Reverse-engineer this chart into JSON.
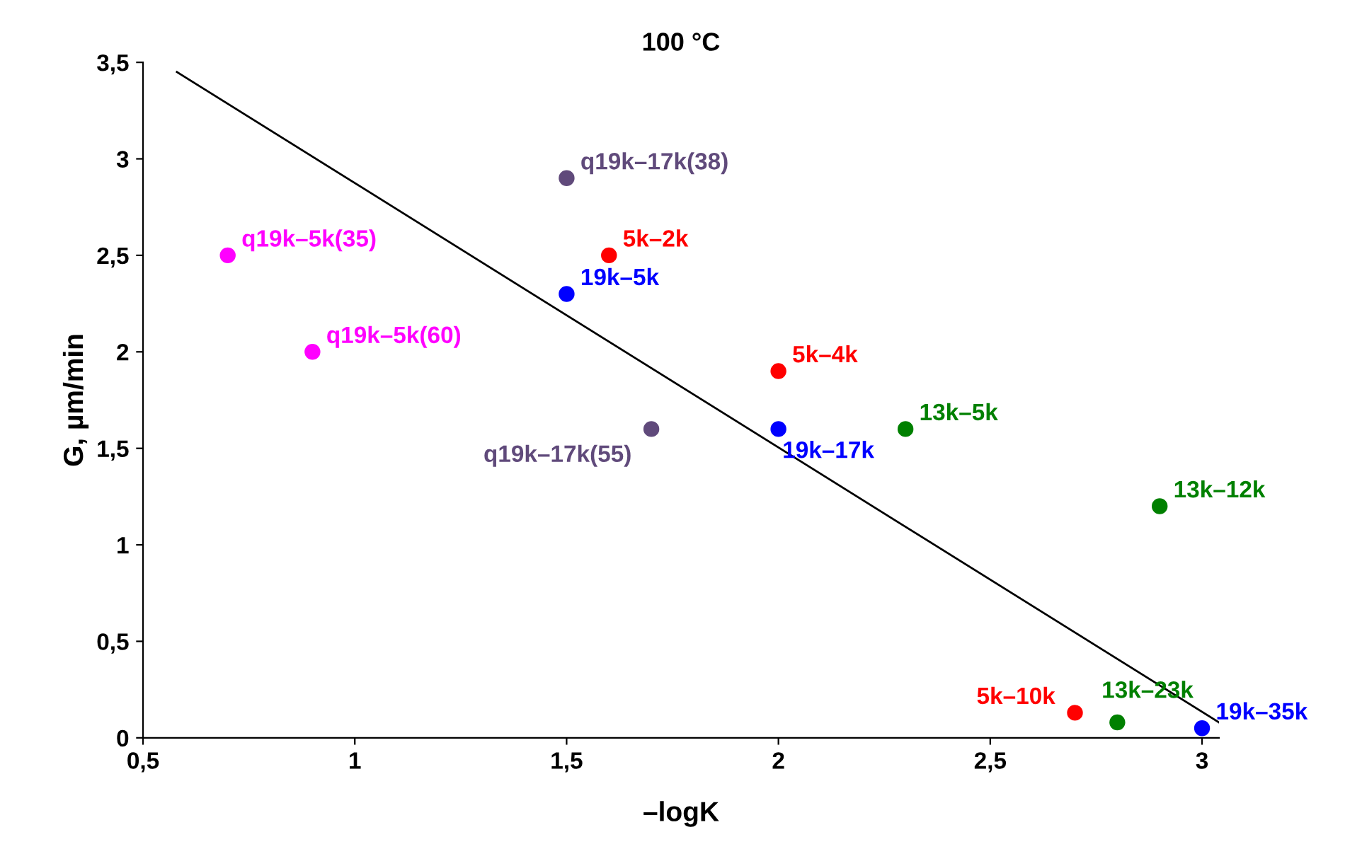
{
  "chart_data": {
    "type": "scatter",
    "title": "100 °C",
    "xlabel": "–logK",
    "ylabel": "G, µm/min",
    "xlim": [
      0.5,
      3.04
    ],
    "ylim": [
      0,
      3.5
    ],
    "xticks": [
      {
        "value": 0.5,
        "label": "0,5"
      },
      1,
      {
        "value": 1.5,
        "label": "1,5"
      },
      2,
      {
        "value": 2.5,
        "label": "2,5"
      },
      3
    ],
    "yticks": [
      0,
      {
        "value": 0.5,
        "label": "0,5"
      },
      1,
      {
        "value": 1.5,
        "label": "1,5"
      },
      2,
      {
        "value": 2.5,
        "label": "2,5"
      },
      3,
      {
        "value": 3.5,
        "label": "3,5"
      }
    ],
    "grid": false,
    "legend": false,
    "series": [
      {
        "name": "q19k–5k(35)",
        "color": "#ff00ff",
        "x": [
          0.7
        ],
        "values": [
          2.5
        ]
      },
      {
        "name": "q19k–5k(60)",
        "color": "#ff00ff",
        "x": [
          0.9
        ],
        "values": [
          2.0
        ]
      },
      {
        "name": "q19k–17k(38)",
        "color": "#604a7b",
        "x": [
          1.5
        ],
        "values": [
          2.9
        ]
      },
      {
        "name": "q19k–17k(55)",
        "color": "#604a7b",
        "x": [
          1.7
        ],
        "values": [
          1.6
        ]
      },
      {
        "name": "5k–2k",
        "color": "#ff0000",
        "x": [
          1.6
        ],
        "values": [
          2.5
        ]
      },
      {
        "name": "19k–5k",
        "color": "#0000ff",
        "x": [
          1.5
        ],
        "values": [
          2.3
        ]
      },
      {
        "name": "5k–4k",
        "color": "#ff0000",
        "x": [
          2.0
        ],
        "values": [
          1.9
        ]
      },
      {
        "name": "19k–17k",
        "color": "#0000ff",
        "x": [
          2.0
        ],
        "values": [
          1.6
        ]
      },
      {
        "name": "13k–5k",
        "color": "#008000",
        "x": [
          2.3
        ],
        "values": [
          1.6
        ]
      },
      {
        "name": "13k–12k",
        "color": "#008000",
        "x": [
          2.9
        ],
        "values": [
          1.2
        ]
      },
      {
        "name": "5k–10k",
        "color": "#ff0000",
        "x": [
          2.7
        ],
        "values": [
          0.13
        ]
      },
      {
        "name": "13k–23k",
        "color": "#008000",
        "x": [
          2.8
        ],
        "values": [
          0.08
        ]
      },
      {
        "name": "19k–35k",
        "color": "#0000ff",
        "x": [
          3.0
        ],
        "values": [
          0.05
        ]
      },
      {
        "type": "line",
        "color": "#000000",
        "x": [
          0.58,
          3.04
        ],
        "values": [
          3.45,
          0.08
        ]
      }
    ]
  }
}
